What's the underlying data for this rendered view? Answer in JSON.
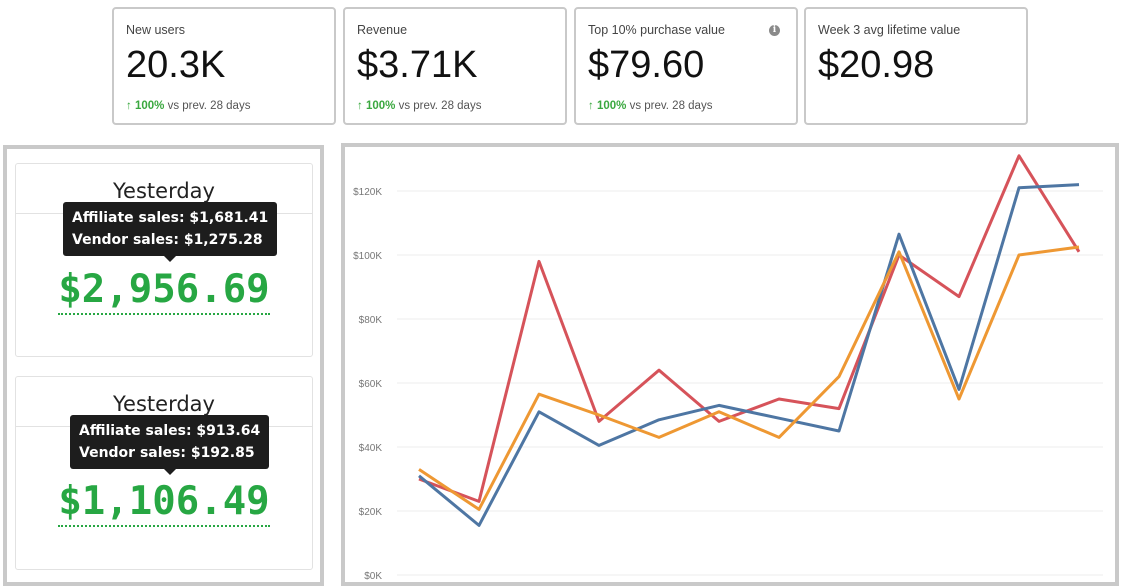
{
  "kpis": [
    {
      "title": "New users",
      "value": "20.3K",
      "delta_pct": "100%",
      "delta_text": " vs prev. 28 days"
    },
    {
      "title": "Revenue",
      "value": "$3.71K",
      "delta_pct": "100%",
      "delta_text": " vs prev. 28 days"
    },
    {
      "title": "Top 10% purchase value",
      "value": "$79.60",
      "delta_pct": "100%",
      "delta_text": " vs prev. 28 days"
    },
    {
      "title": "Week 3 avg lifetime value",
      "value": "$20.98"
    }
  ],
  "info_icon_glyph": "i",
  "sales_cards": [
    {
      "heading": "Yesterday",
      "tooltip_line1": "Affiliate sales: $1,681.41",
      "tooltip_line2": "Vendor sales: $1,275.28",
      "total": "$2,956.69"
    },
    {
      "heading": "Yesterday",
      "tooltip_line1": "Affiliate sales: $913.64",
      "tooltip_line2": "Vendor sales: $192.85",
      "total": "$1,106.49"
    }
  ],
  "colors": {
    "green": "#27a743",
    "red": "#d6535a",
    "blue": "#4e76a3",
    "orange": "#ee9833"
  },
  "chart_data": {
    "type": "line",
    "x": [
      1,
      2,
      3,
      4,
      5,
      6,
      7,
      8,
      9,
      10,
      11,
      12
    ],
    "ylim": [
      0,
      130000
    ],
    "yticks": [
      "$0K",
      "$20K",
      "$40K",
      "$60K",
      "$80K",
      "$100K",
      "$120K"
    ],
    "ytick_values": [
      0,
      20000,
      40000,
      60000,
      80000,
      100000,
      120000
    ],
    "grid": true,
    "series": [
      {
        "color": "#d6535a",
        "values": [
          30000,
          23000,
          98000,
          48000,
          64000,
          48000,
          55000,
          52000,
          100000,
          87000,
          131000,
          101000
        ]
      },
      {
        "color": "#4e76a3",
        "values": [
          31000,
          15500,
          51000,
          40500,
          48500,
          53000,
          49000,
          45000,
          106500,
          58000,
          121000,
          122000
        ]
      },
      {
        "color": "#ee9833",
        "values": [
          33000,
          20500,
          56500,
          50000,
          43000,
          51000,
          43000,
          62000,
          101000,
          55000,
          100000,
          102500
        ]
      }
    ]
  }
}
